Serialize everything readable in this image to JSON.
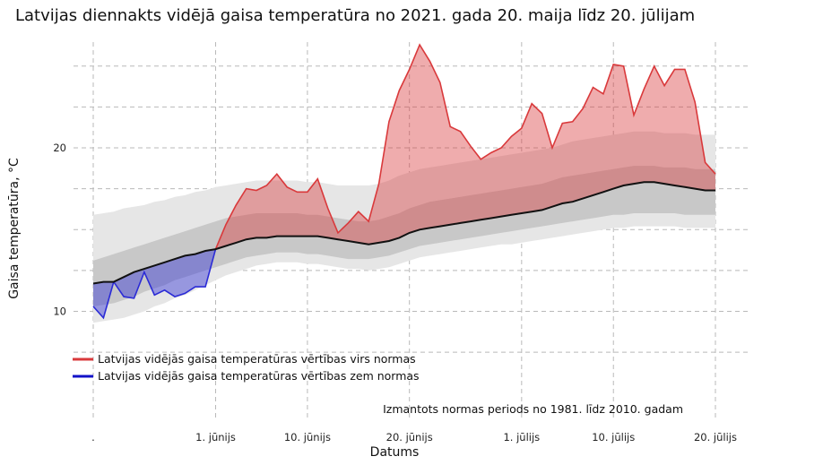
{
  "chart_data": {
    "type": "area",
    "title": "Latvijas diennakts vidējā gaisa temperatūra no 2021. gada 20. maija līdz 20. jūlijam",
    "xlabel": "Datums",
    "ylabel": "Gaisa temperatūra, °C",
    "ylim": [
      5,
      27.5
    ],
    "xlim": [
      "2021-05-20",
      "2021-07-20"
    ],
    "y_ticks": [
      10,
      20
    ],
    "x_ticks": [
      {
        "date": "2021-05-20",
        "label": "."
      },
      {
        "date": "2021-06-01",
        "label": "1. jūnijs"
      },
      {
        "date": "2021-06-10",
        "label": "10. jūnijs"
      },
      {
        "date": "2021-06-20",
        "label": "20. jūnijs"
      },
      {
        "date": "2021-07-01",
        "label": "1. jūlijs"
      },
      {
        "date": "2021-07-10",
        "label": "10. jūlijs"
      },
      {
        "date": "2021-07-20",
        "label": "20. jūlijs"
      }
    ],
    "grid": true,
    "legend_position": "bottom-left",
    "colors": {
      "above": "#d9393b",
      "below": "#2b2bd6",
      "normal_line": "#111111",
      "band_outer": "#e6e6e6",
      "band_inner": "#c8c8c8"
    },
    "legend": [
      {
        "label": "Latvijas vidējās gaisa temperatūras vērtības virs normas",
        "color": "#d9393b"
      },
      {
        "label": "Latvijas vidējās gaisa temperatūras vērtības zem normas",
        "color": "#1212c8"
      }
    ],
    "note": "Izmantots normas periods no 1981. līdz 2010. gadam",
    "dates": [
      "2021-05-20",
      "2021-05-21",
      "2021-05-22",
      "2021-05-23",
      "2021-05-24",
      "2021-05-25",
      "2021-05-26",
      "2021-05-27",
      "2021-05-28",
      "2021-05-29",
      "2021-05-30",
      "2021-05-31",
      "2021-06-01",
      "2021-06-02",
      "2021-06-03",
      "2021-06-04",
      "2021-06-05",
      "2021-06-06",
      "2021-06-07",
      "2021-06-08",
      "2021-06-09",
      "2021-06-10",
      "2021-06-11",
      "2021-06-12",
      "2021-06-13",
      "2021-06-14",
      "2021-06-15",
      "2021-06-16",
      "2021-06-17",
      "2021-06-18",
      "2021-06-19",
      "2021-06-20",
      "2021-06-21",
      "2021-06-22",
      "2021-06-23",
      "2021-06-24",
      "2021-06-25",
      "2021-06-26",
      "2021-06-27",
      "2021-06-28",
      "2021-06-29",
      "2021-06-30",
      "2021-07-01",
      "2021-07-02",
      "2021-07-03",
      "2021-07-04",
      "2021-07-05",
      "2021-07-06",
      "2021-07-07",
      "2021-07-08",
      "2021-07-09",
      "2021-07-10",
      "2021-07-11",
      "2021-07-12",
      "2021-07-13",
      "2021-07-14",
      "2021-07-15",
      "2021-07-16",
      "2021-07-17",
      "2021-07-18",
      "2021-07-19",
      "2021-07-20"
    ],
    "series": [
      {
        "name": "Latvijas vidējās gaisa temperatūras vērtības virs normas / zem normas",
        "values": [
          10.3,
          9.6,
          11.8,
          10.9,
          10.8,
          12.4,
          11.0,
          11.3,
          10.9,
          11.1,
          11.5,
          11.5,
          13.8,
          15.3,
          16.5,
          17.5,
          17.4,
          17.7,
          18.4,
          17.6,
          17.3,
          17.3,
          18.1,
          16.3,
          14.8,
          15.4,
          16.1,
          15.5,
          17.8,
          21.6,
          23.5,
          24.8,
          26.3,
          25.3,
          24.0,
          21.3,
          21.0,
          20.1,
          19.3,
          19.7,
          20.0,
          20.7,
          21.2,
          22.7,
          22.1,
          20.0,
          21.5,
          21.6,
          22.4,
          23.7,
          23.3,
          25.1,
          25.0,
          22.0,
          23.6,
          25.0,
          23.8,
          24.8,
          24.8,
          22.8,
          19.1,
          18.4
        ]
      },
      {
        "name": "Norma",
        "values": [
          11.7,
          11.8,
          11.8,
          12.1,
          12.4,
          12.6,
          12.8,
          13.0,
          13.2,
          13.4,
          13.5,
          13.7,
          13.8,
          14.0,
          14.2,
          14.4,
          14.5,
          14.5,
          14.6,
          14.6,
          14.6,
          14.6,
          14.6,
          14.5,
          14.4,
          14.3,
          14.2,
          14.1,
          14.2,
          14.3,
          14.5,
          14.8,
          15.0,
          15.1,
          15.2,
          15.3,
          15.4,
          15.5,
          15.6,
          15.7,
          15.8,
          15.9,
          16.0,
          16.1,
          16.2,
          16.4,
          16.6,
          16.7,
          16.9,
          17.1,
          17.3,
          17.5,
          17.7,
          17.8,
          17.9,
          17.9,
          17.8,
          17.7,
          17.6,
          17.5,
          17.4,
          17.4
        ]
      }
    ],
    "bands": {
      "outer_low": [
        9.3,
        9.4,
        9.5,
        9.6,
        9.8,
        10.0,
        10.3,
        10.5,
        10.8,
        11.0,
        11.3,
        11.6,
        11.9,
        12.2,
        12.4,
        12.6,
        12.8,
        12.9,
        13.0,
        13.0,
        13.0,
        12.9,
        12.9,
        12.8,
        12.7,
        12.6,
        12.6,
        12.5,
        12.6,
        12.7,
        12.9,
        13.1,
        13.3,
        13.4,
        13.5,
        13.6,
        13.7,
        13.8,
        13.9,
        14.0,
        14.1,
        14.1,
        14.2,
        14.3,
        14.4,
        14.5,
        14.6,
        14.7,
        14.8,
        14.9,
        15.0,
        15.1,
        15.1,
        15.2,
        15.2,
        15.2,
        15.2,
        15.2,
        15.1,
        15.1,
        15.1,
        15.1
      ],
      "inner_low": [
        10.3,
        10.4,
        10.5,
        10.7,
        10.9,
        11.2,
        11.4,
        11.6,
        11.9,
        12.1,
        12.3,
        12.5,
        12.7,
        12.9,
        13.1,
        13.3,
        13.4,
        13.5,
        13.6,
        13.6,
        13.6,
        13.5,
        13.5,
        13.4,
        13.3,
        13.2,
        13.2,
        13.2,
        13.3,
        13.4,
        13.6,
        13.8,
        14.0,
        14.1,
        14.2,
        14.3,
        14.4,
        14.5,
        14.6,
        14.7,
        14.8,
        14.9,
        15.0,
        15.1,
        15.2,
        15.3,
        15.4,
        15.5,
        15.6,
        15.7,
        15.8,
        15.9,
        15.9,
        16.0,
        16.0,
        16.0,
        16.0,
        16.0,
        15.9,
        15.9,
        15.9,
        15.9
      ],
      "inner_high": [
        13.1,
        13.3,
        13.5,
        13.7,
        13.9,
        14.1,
        14.3,
        14.5,
        14.7,
        14.9,
        15.1,
        15.3,
        15.5,
        15.7,
        15.8,
        15.9,
        16.0,
        16.0,
        16.0,
        16.0,
        16.0,
        15.9,
        15.9,
        15.8,
        15.7,
        15.6,
        15.5,
        15.5,
        15.6,
        15.8,
        16.0,
        16.3,
        16.5,
        16.7,
        16.8,
        16.9,
        17.0,
        17.1,
        17.2,
        17.3,
        17.4,
        17.5,
        17.6,
        17.7,
        17.8,
        18.0,
        18.2,
        18.3,
        18.4,
        18.5,
        18.6,
        18.7,
        18.8,
        18.9,
        18.9,
        18.9,
        18.8,
        18.8,
        18.8,
        18.7,
        18.7,
        18.7
      ],
      "outer_high": [
        15.9,
        16.0,
        16.1,
        16.3,
        16.4,
        16.5,
        16.7,
        16.8,
        17.0,
        17.1,
        17.3,
        17.4,
        17.6,
        17.7,
        17.8,
        17.9,
        18.0,
        18.0,
        18.0,
        18.0,
        18.0,
        17.9,
        17.9,
        17.8,
        17.7,
        17.7,
        17.7,
        17.7,
        17.8,
        18.0,
        18.3,
        18.5,
        18.7,
        18.8,
        18.9,
        19.0,
        19.1,
        19.2,
        19.3,
        19.4,
        19.5,
        19.6,
        19.7,
        19.8,
        19.9,
        20.0,
        20.2,
        20.4,
        20.5,
        20.6,
        20.7,
        20.8,
        20.9,
        21.0,
        21.0,
        21.0,
        20.9,
        20.9,
        20.9,
        20.8,
        20.8,
        20.8
      ]
    }
  }
}
